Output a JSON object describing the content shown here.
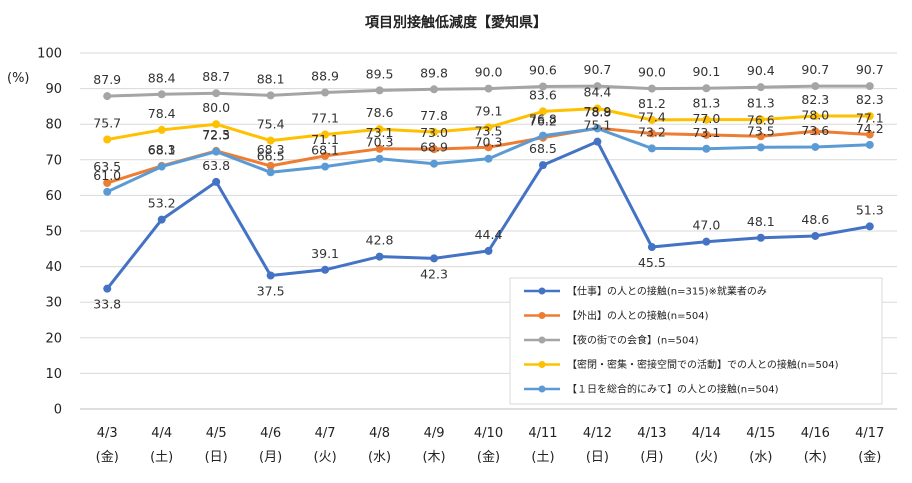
{
  "chart_data": {
    "type": "line",
    "title": "項目別接触低減度【愛知県】",
    "ylabel": "(%)",
    "ylim": [
      0,
      100
    ],
    "yticks": [
      0,
      10,
      20,
      30,
      40,
      50,
      60,
      70,
      80,
      90,
      100
    ],
    "grid": true,
    "legend_position": "bottom-right",
    "categories": [
      "4/3",
      "4/4",
      "4/5",
      "4/6",
      "4/7",
      "4/8",
      "4/9",
      "4/10",
      "4/11",
      "4/12",
      "4/13",
      "4/14",
      "4/15",
      "4/16",
      "4/17"
    ],
    "weekdays": [
      "(金)",
      "(土)",
      "(日)",
      "(月)",
      "(火)",
      "(水)",
      "(木)",
      "(金)",
      "(土)",
      "(日)",
      "(月)",
      "(火)",
      "(水)",
      "(木)",
      "(金)"
    ],
    "series": [
      {
        "name": "【仕事】の人との接触(n=315)※就業者のみ",
        "color": "#4472C4",
        "values": [
          33.8,
          53.2,
          63.8,
          37.5,
          39.1,
          42.8,
          42.3,
          44.4,
          68.5,
          75.1,
          45.5,
          47.0,
          48.1,
          48.6,
          51.3
        ]
      },
      {
        "name": "【外出】の人との接触(n=504)",
        "color": "#ED7D31",
        "values": [
          63.5,
          68.3,
          72.5,
          68.3,
          71.1,
          73.1,
          73.0,
          73.5,
          76.2,
          78.9,
          77.4,
          77.0,
          76.6,
          78.0,
          77.1
        ]
      },
      {
        "name": "【夜の街での会食】(n=504)",
        "color": "#A5A5A5",
        "values": [
          87.9,
          88.4,
          88.7,
          88.1,
          88.9,
          89.5,
          89.8,
          90.0,
          90.6,
          90.7,
          90.0,
          90.1,
          90.4,
          90.7,
          90.7
        ]
      },
      {
        "name": "【密閉・密集・密接空間での活動】での人との接触(n=504)",
        "color": "#FFC000",
        "values": [
          75.7,
          78.4,
          80.0,
          75.4,
          77.1,
          78.6,
          77.8,
          79.1,
          83.6,
          84.4,
          81.2,
          81.3,
          81.3,
          82.3,
          82.3
        ]
      },
      {
        "name": "【１日を総合的にみて】の人との接触(n=504)",
        "color": "#5B9BD5",
        "values": [
          61.0,
          68.1,
          72.3,
          66.5,
          68.1,
          70.3,
          68.9,
          70.3,
          76.8,
          78.8,
          73.2,
          73.1,
          73.5,
          73.6,
          74.2
        ]
      }
    ]
  }
}
